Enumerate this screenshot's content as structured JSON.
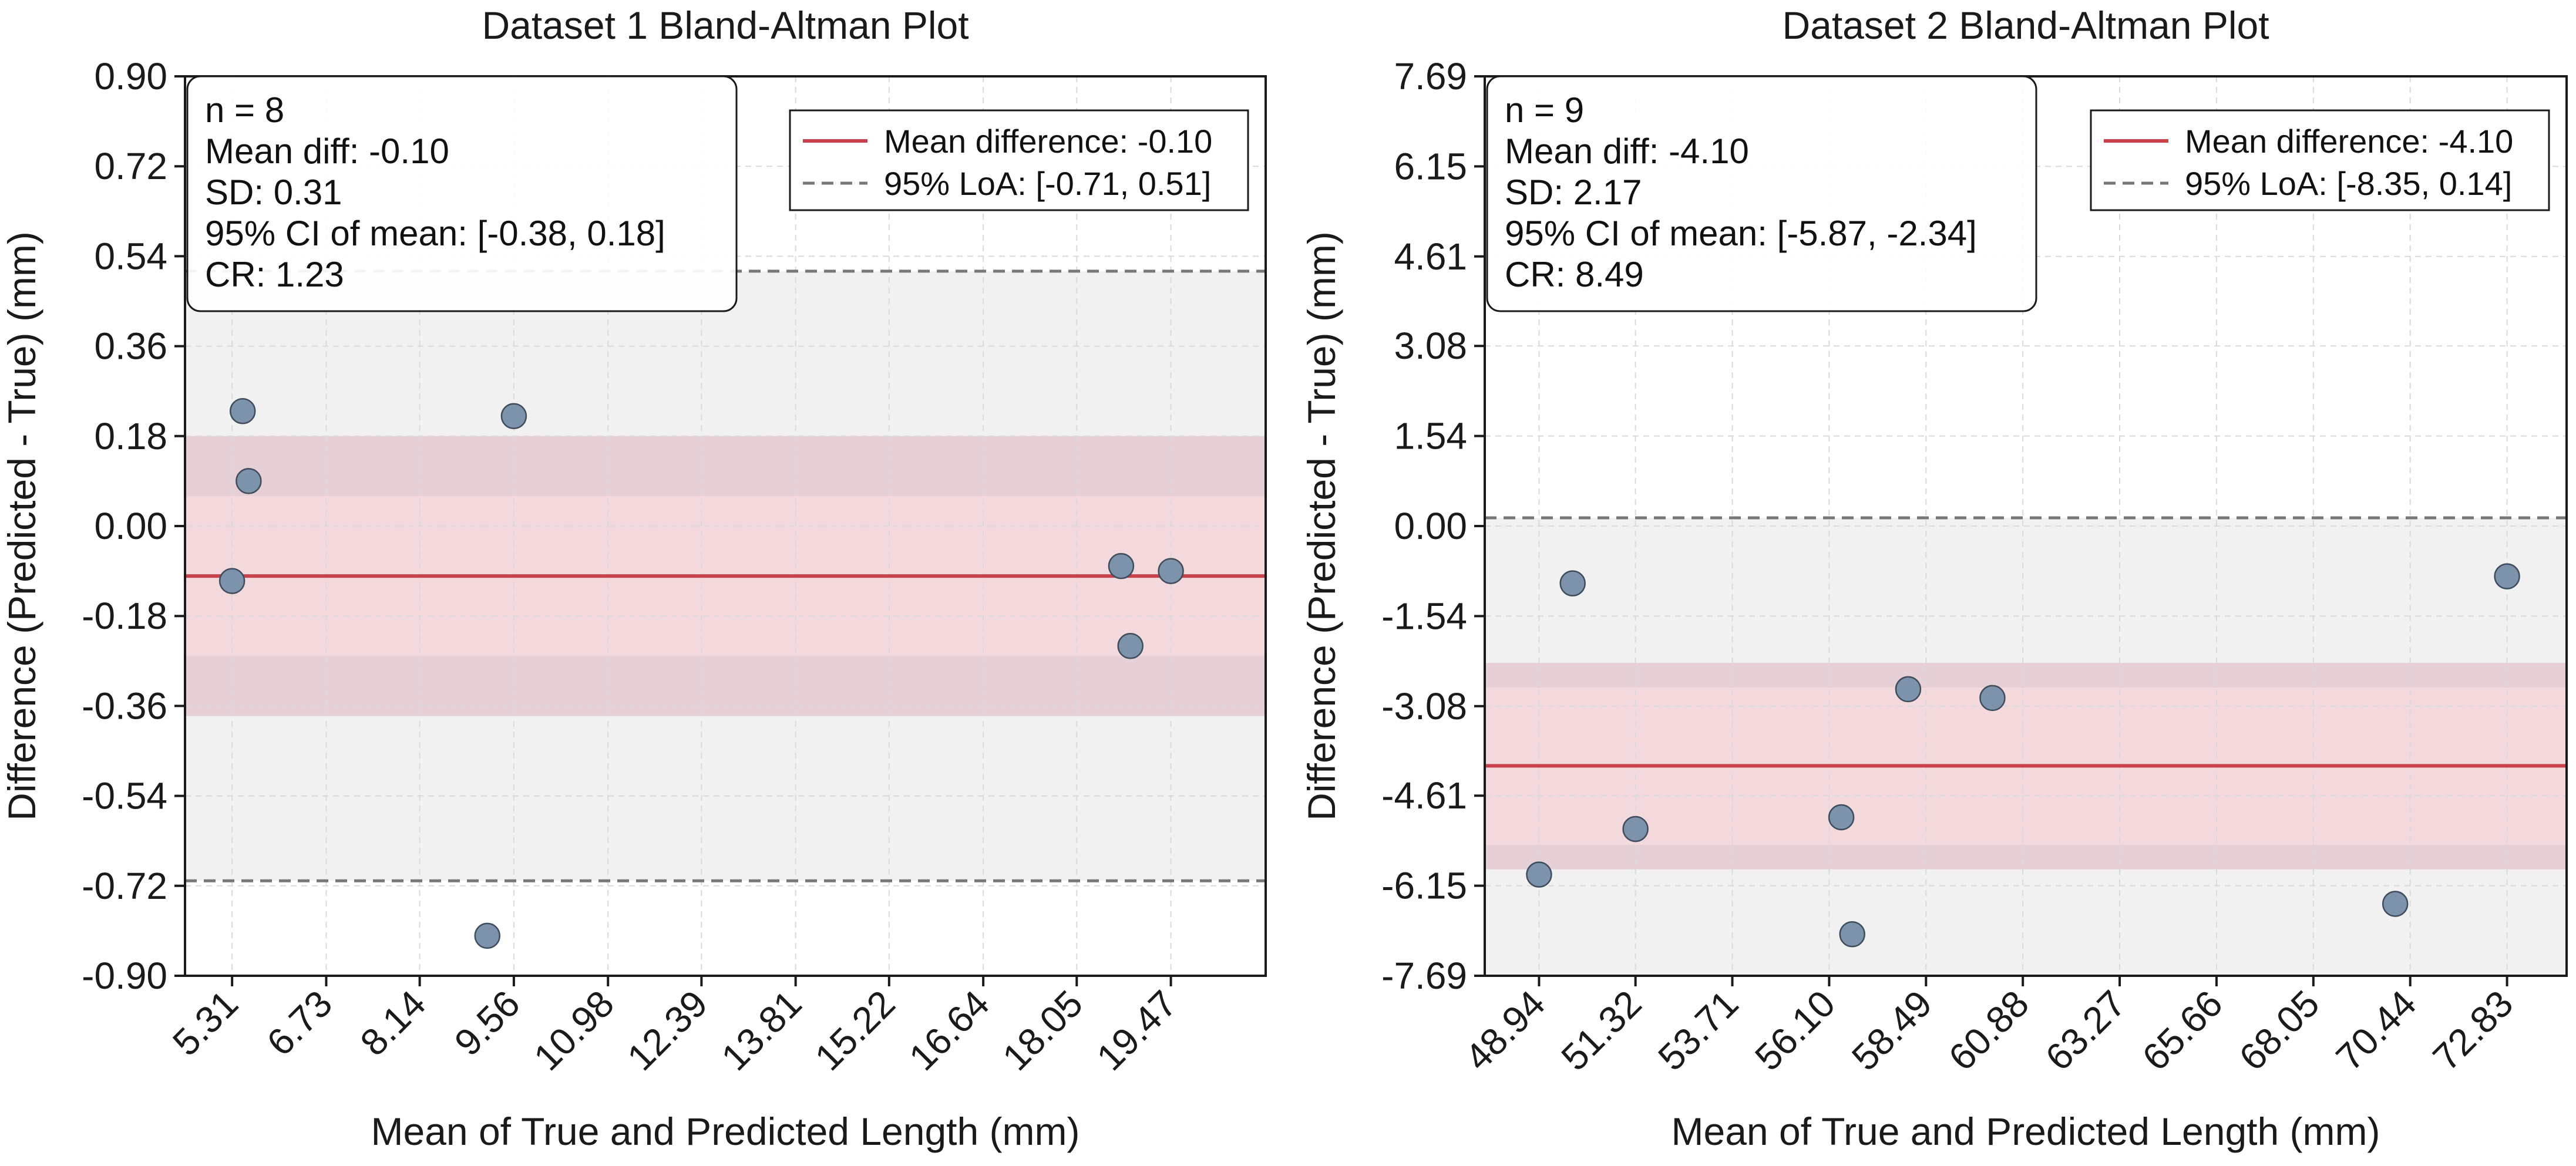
{
  "chart_data": [
    {
      "type": "scatter",
      "title": "Dataset 1 Bland-Altman Plot",
      "xlabel": "Mean of True and Predicted Length (mm)",
      "ylabel": "Difference (Predicted - True) (mm)",
      "xlim": [
        4.6,
        20.9
      ],
      "ylim": [
        -0.9,
        0.9
      ],
      "x_ticks": [
        "5.31",
        "6.73",
        "8.14",
        "9.56",
        "10.98",
        "12.39",
        "13.81",
        "15.22",
        "16.64",
        "18.05",
        "19.47"
      ],
      "y_ticks": [
        "0.90",
        "0.72",
        "0.54",
        "0.36",
        "0.18",
        "0.00",
        "-0.18",
        "-0.36",
        "-0.54",
        "-0.72",
        "-0.90"
      ],
      "points": [
        {
          "x": 5.31,
          "y": -0.11
        },
        {
          "x": 5.47,
          "y": 0.23
        },
        {
          "x": 5.56,
          "y": 0.09
        },
        {
          "x": 9.16,
          "y": -0.82
        },
        {
          "x": 9.56,
          "y": 0.22
        },
        {
          "x": 18.72,
          "y": -0.08
        },
        {
          "x": 18.86,
          "y": -0.24
        },
        {
          "x": 19.47,
          "y": -0.09
        }
      ],
      "mean_diff": -0.1,
      "loa": [
        -0.71,
        0.51
      ],
      "mean_ci": [
        -0.38,
        0.18
      ],
      "ci_band_span": [
        -0.38,
        0.18
      ],
      "ci_band_inner": [
        -0.26,
        0.06
      ],
      "legend": {
        "placement": "top-right",
        "mean_label": "Mean difference: -0.10",
        "loa_label": "95% LoA: [-0.71, 0.51]"
      },
      "stats": [
        "n = 8",
        "Mean diff: -0.10",
        "SD: 0.31",
        "95% CI of mean: [-0.38, 0.18]",
        "CR: 1.23"
      ],
      "grid": true,
      "colors": {
        "points": "#7c93ab",
        "mean": "#c8414b",
        "loa": "#777777",
        "band": "#f3d9dc",
        "band_dark": "#e6cfd5",
        "bg": "#f1f1f1"
      }
    },
    {
      "type": "scatter",
      "title": "Dataset 2 Bland-Altman Plot",
      "xlabel": "Mean of True and Predicted Length (mm)",
      "ylabel": "Difference (Predicted - True) (mm)",
      "xlim": [
        47.6,
        74.3
      ],
      "ylim": [
        -7.69,
        7.69
      ],
      "x_ticks": [
        "48.94",
        "51.32",
        "53.71",
        "56.10",
        "58.49",
        "60.88",
        "63.27",
        "65.66",
        "68.05",
        "70.44",
        "72.83"
      ],
      "y_ticks": [
        "7.69",
        "6.15",
        "4.61",
        "3.08",
        "1.54",
        "0.00",
        "-1.54",
        "-3.08",
        "-4.61",
        "-6.15",
        "-7.69"
      ],
      "points": [
        {
          "x": 48.94,
          "y": -5.96
        },
        {
          "x": 49.77,
          "y": -0.98
        },
        {
          "x": 51.32,
          "y": -5.18
        },
        {
          "x": 56.4,
          "y": -4.98
        },
        {
          "x": 56.67,
          "y": -6.98
        },
        {
          "x": 58.05,
          "y": -2.79
        },
        {
          "x": 60.13,
          "y": -2.94
        },
        {
          "x": 70.07,
          "y": -6.46
        },
        {
          "x": 72.83,
          "y": -0.86
        }
      ],
      "mean_diff": -4.1,
      "loa": [
        -8.35,
        0.14
      ],
      "mean_ci": [
        -5.87,
        -2.34
      ],
      "ci_band_span": [
        -5.87,
        -2.34
      ],
      "ci_band_inner": [
        -5.45,
        -2.76
      ],
      "legend": {
        "placement": "top-right",
        "mean_label": "Mean difference: -4.10",
        "loa_label": "95% LoA: [-8.35, 0.14]"
      },
      "stats": [
        "n = 9",
        "Mean diff: -4.10",
        "SD: 2.17",
        "95% CI of mean: [-5.87, -2.34]",
        "CR: 8.49"
      ],
      "grid": true,
      "colors": {
        "points": "#7c93ab",
        "mean": "#c8414b",
        "loa": "#777777",
        "band": "#f3d9dc",
        "band_dark": "#e6cfd5",
        "bg": "#f1f1f1"
      }
    }
  ]
}
